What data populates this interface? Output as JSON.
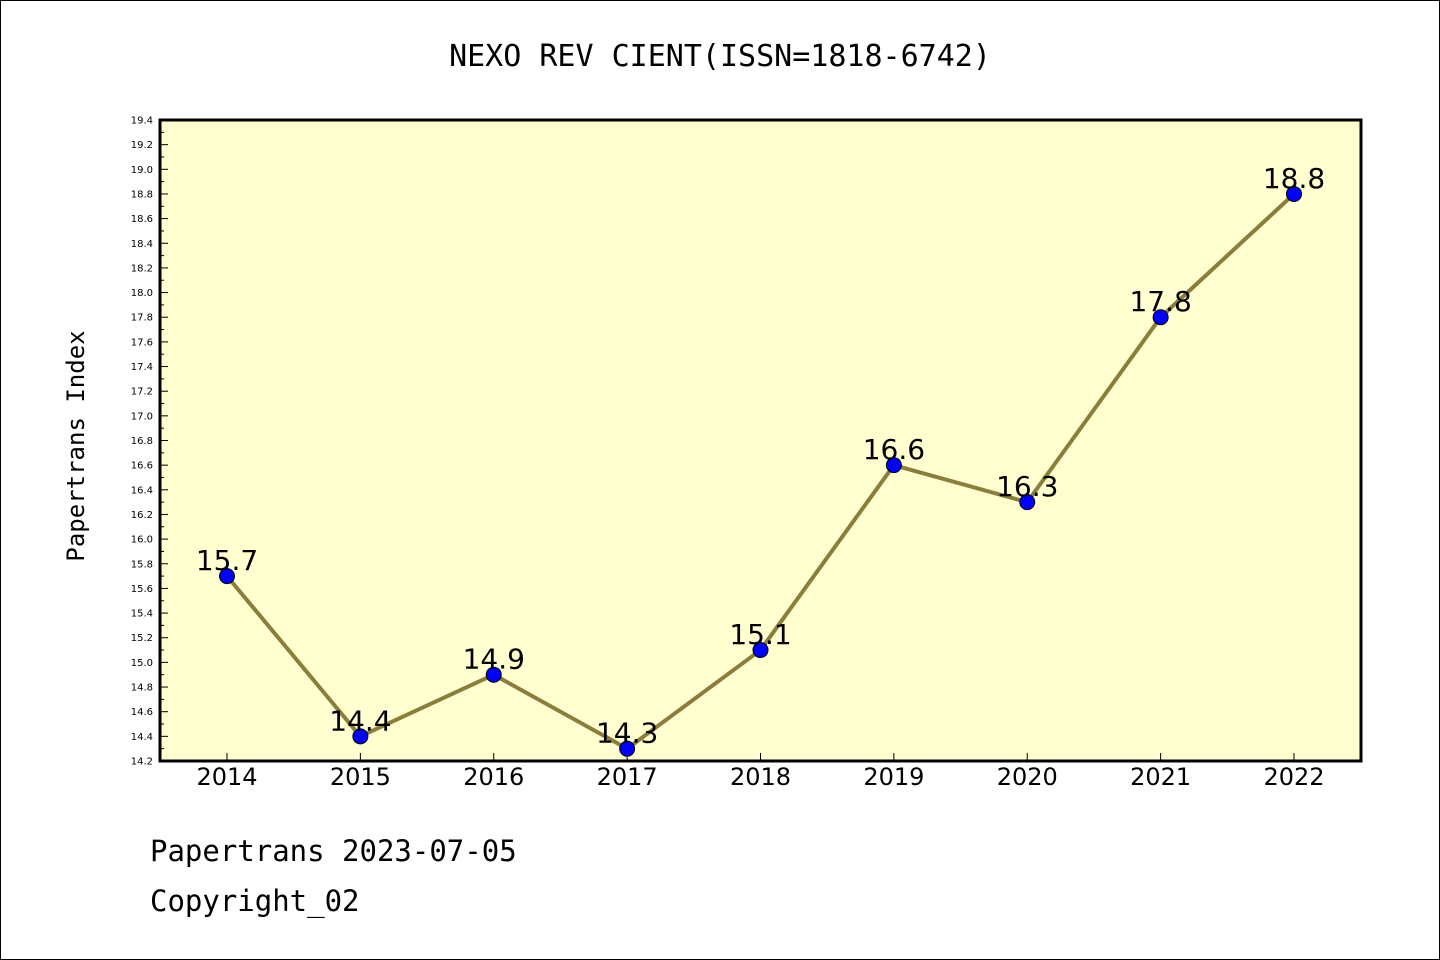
{
  "chart_data": {
    "type": "line",
    "title": "NEXO REV CIENT(ISSN=1818-6742)",
    "xlabel": "",
    "ylabel": "Papertrans Index",
    "categories": [
      "2014",
      "2015",
      "2016",
      "2017",
      "2018",
      "2019",
      "2020",
      "2021",
      "2022"
    ],
    "series": [
      {
        "values": [
          15.7,
          14.4,
          14.9,
          14.3,
          15.1,
          16.6,
          16.3,
          17.8,
          18.8
        ],
        "data_labels": [
          "15.7",
          "14.4",
          "14.9",
          "14.3",
          "15.1",
          "16.6",
          "16.3",
          "17.8",
          "18.8"
        ]
      }
    ],
    "ylim": [
      14.2,
      19.4
    ],
    "yticks": [
      "14.2",
      "14.4",
      "14.6",
      "14.8",
      "15.0",
      "15.2",
      "15.4",
      "15.6",
      "15.8",
      "16.0",
      "16.2",
      "16.4",
      "16.6",
      "16.8",
      "17.0",
      "17.2",
      "17.4",
      "17.6",
      "17.8",
      "18.0",
      "18.2",
      "18.4",
      "18.6",
      "18.8",
      "19.0",
      "19.2",
      "19.4"
    ],
    "grid": false,
    "colors": {
      "plot_background": "#ffffd0",
      "line": "#8b7d3a",
      "marker": "#0000ff"
    }
  },
  "footer": {
    "source": "Papertrans 2023-07-05",
    "copyright": "Copyright_02"
  }
}
